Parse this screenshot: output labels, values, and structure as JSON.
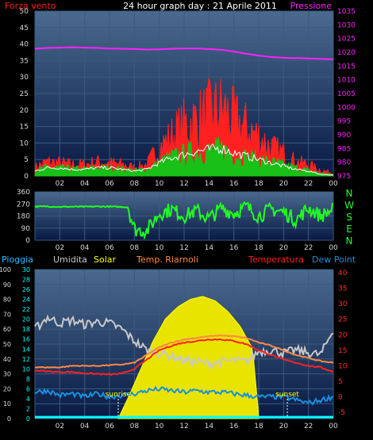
{
  "title": "24 hour graph day : 21 Aprile 2011",
  "colors": {
    "background": "#000000",
    "plot_top": "#4a6a8e",
    "plot_bottom": "#081a44",
    "grid": "#3c5a7c",
    "axis_text": "#d8d8d8",
    "wind": "#ff2020",
    "gust": "#18c018",
    "avgwind": "#ffffff",
    "pressure": "#ff20ff",
    "direction": "#20ff20",
    "compass": "#20ff20",
    "rain_label": "#20c0ff",
    "humidity": "#c8c8c8",
    "solar": "#ffff00",
    "solar_fill": "#e8e400",
    "room_temp": "#ff8844",
    "temperature": "#ff2020",
    "dewpoint": "#1890e0",
    "rain_axis": "#00ffff",
    "temp_axis": "#ff3030",
    "rain_line": "#00ffff",
    "sun_marker": "#ffffff",
    "sun_label": "#ffff00"
  },
  "chart_data": [
    {
      "id": "wind",
      "type": "line",
      "x_ticks": [
        "02",
        "04",
        "06",
        "08",
        "10",
        "12",
        "14",
        "16",
        "18",
        "20",
        "22",
        "00"
      ],
      "x_range_hours": [
        0,
        24
      ],
      "left_axis": {
        "label": "Forza vento",
        "ticks": [
          "0",
          "5",
          "10",
          "15",
          "20",
          "25",
          "30",
          "35",
          "40",
          "45",
          "50"
        ],
        "ylim": [
          0,
          50
        ]
      },
      "right_axis": {
        "label": "Pressione",
        "ticks": [
          "975",
          "980",
          "985",
          "990",
          "995",
          "1000",
          "1005",
          "1010",
          "1015",
          "1020",
          "1025",
          "1030",
          "1035"
        ],
        "ylim": [
          975,
          1035
        ]
      },
      "series": [
        {
          "axis": "right",
          "x_hours": [
            0,
            1,
            2,
            3,
            4,
            5,
            6,
            7,
            8,
            9,
            10,
            11,
            12,
            13,
            14,
            15,
            16,
            17,
            18,
            19,
            20,
            21,
            22,
            23,
            24
          ],
          "values": [
            1021.3,
            1021.6,
            1021.7,
            1021.8,
            1021.7,
            1021.6,
            1021.4,
            1021.3,
            1021.2,
            1021.0,
            1021.1,
            1021.3,
            1021.4,
            1021.4,
            1021.2,
            1020.9,
            1020.3,
            1019.5,
            1018.8,
            1018.3,
            1018.0,
            1017.9,
            1017.8,
            1017.6,
            1017.5
          ]
        },
        {
          "x_hours": [
            0,
            1,
            2,
            3,
            4,
            5,
            6,
            7,
            8,
            9,
            10,
            11,
            12,
            13,
            14,
            15,
            16,
            17,
            18,
            19,
            20,
            21,
            22,
            23,
            24
          ],
          "values": [
            3,
            5,
            4.5,
            4,
            4,
            5,
            4.5,
            4,
            3,
            4,
            10,
            14,
            18,
            20,
            22,
            24,
            20,
            17,
            14,
            10,
            8,
            5,
            4,
            2,
            1
          ]
        },
        {
          "x_hours": [
            0,
            1,
            2,
            3,
            4,
            5,
            6,
            7,
            8,
            9,
            10,
            11,
            12,
            13,
            14,
            15,
            16,
            17,
            18,
            19,
            20,
            21,
            22,
            23,
            24
          ],
          "values": [
            2,
            3,
            3,
            2.5,
            2.5,
            3,
            3,
            2.5,
            2,
            2.5,
            5,
            7,
            8,
            9,
            9,
            10,
            8,
            7,
            6,
            5,
            4,
            3,
            2,
            1,
            0.5
          ]
        },
        {
          "x_hours": [
            0,
            1,
            2,
            3,
            4,
            5,
            6,
            7,
            8,
            9,
            10,
            11,
            12,
            13,
            14,
            15,
            16,
            17,
            18,
            19,
            20,
            21,
            22,
            23,
            24
          ],
          "values": [
            1.5,
            2.5,
            2.5,
            2,
            2,
            2.5,
            2.5,
            2,
            1.5,
            2,
            4,
            5.5,
            6.5,
            7.5,
            8,
            8.5,
            7,
            6,
            5,
            4,
            3,
            2,
            1.5,
            0.5,
            0.3
          ]
        }
      ]
    },
    {
      "id": "direction",
      "type": "line",
      "x_ticks": [
        "02",
        "04",
        "06",
        "08",
        "10",
        "12",
        "14",
        "16",
        "18",
        "20",
        "22",
        "00"
      ],
      "x_range_hours": [
        0,
        24
      ],
      "left_axis": {
        "ticks": [
          "0",
          "90",
          "180",
          "270",
          "360"
        ],
        "ylim": [
          0,
          360
        ]
      },
      "compass": [
        "N",
        "W",
        "S",
        "E",
        "N"
      ],
      "series": [
        {
          "x_hours": [
            0,
            1,
            2,
            3,
            4,
            5,
            6,
            7,
            7.5,
            8,
            9,
            10,
            11,
            12,
            13,
            14,
            15,
            16,
            17,
            18,
            19,
            20,
            21,
            22,
            23,
            24
          ],
          "values": [
            250,
            252,
            248,
            250,
            249,
            251,
            250,
            248,
            245,
            80,
            70,
            200,
            230,
            180,
            220,
            160,
            240,
            200,
            250,
            180,
            230,
            210,
            150,
            240,
            180,
            230
          ]
        }
      ]
    },
    {
      "id": "climate",
      "type": "line",
      "x_ticks": [
        "02",
        "04",
        "06",
        "08",
        "10",
        "12",
        "14",
        "16",
        "18",
        "20",
        "22",
        "00"
      ],
      "x_range_hours": [
        0,
        24
      ],
      "legend": [
        "Pioggia",
        "Umidita",
        "Solar",
        "Temp. Riarnoli",
        "Temperatura",
        "Dew Point"
      ],
      "humidity_axis": {
        "ticks": [
          "0",
          "10",
          "20",
          "30",
          "40",
          "50",
          "60",
          "70",
          "80",
          "90",
          "100"
        ],
        "ylim": [
          0,
          100
        ]
      },
      "rain_axis": {
        "ticks": [
          "0",
          "2",
          "4",
          "6",
          "8",
          "10",
          "12",
          "14",
          "16",
          "18",
          "20",
          "22",
          "24",
          "26",
          "28",
          "30"
        ],
        "ylim": [
          0,
          30
        ]
      },
      "temp_axis": {
        "ticks": [
          "-5",
          "0",
          "5",
          "10",
          "15",
          "20",
          "25",
          "30",
          "35",
          "40"
        ],
        "ylim": [
          -7,
          41
        ]
      },
      "sunrise": "sunrise",
      "sunset": "sunset",
      "sunrise_hour": 6.7,
      "sunset_hour": 20.3,
      "series": [
        {
          "axis": "humidity",
          "x_hours": [
            0,
            1,
            2,
            3,
            4,
            5,
            6,
            7,
            8,
            9,
            10,
            11,
            12,
            13,
            14,
            15,
            16,
            17,
            18,
            19,
            20,
            21,
            22,
            23,
            24
          ],
          "values": [
            60,
            68,
            64,
            66,
            63,
            65,
            64,
            60,
            52,
            46,
            44,
            42,
            39,
            38,
            37,
            38,
            39,
            38,
            45,
            46,
            44,
            46,
            44,
            43,
            60
          ]
        },
        {
          "axis": "humidity",
          "x_hours": [
            6.7,
            7.5,
            8.5,
            9.5,
            10.5,
            11.5,
            12.5,
            13.5,
            14.5,
            15.5,
            16.5,
            17.5,
            18.0
          ],
          "values": [
            0,
            14,
            33,
            52,
            67,
            75,
            80,
            82,
            79,
            72,
            62,
            47,
            2
          ]
        },
        {
          "axis": "temp",
          "x_hours": [
            0,
            1,
            2,
            3,
            4,
            5,
            6,
            7,
            8,
            9,
            10,
            11,
            12,
            13,
            14,
            15,
            16,
            17,
            18,
            19,
            20,
            21,
            22,
            23,
            24
          ],
          "values": [
            9.5,
            9.5,
            9.5,
            10,
            10,
            10,
            10.2,
            10.4,
            11,
            13.5,
            16,
            17.5,
            18.5,
            19,
            19.5,
            19.8,
            19.5,
            19,
            17.5,
            16.5,
            15,
            13.5,
            12.5,
            11.5,
            11
          ]
        },
        {
          "axis": "temp",
          "x_hours": [
            0,
            1,
            2,
            3,
            4,
            5,
            6,
            7,
            8,
            9,
            10,
            11,
            12,
            13,
            14,
            15,
            16,
            17,
            18,
            19,
            20,
            21,
            22,
            23,
            24
          ],
          "values": [
            8.5,
            8.2,
            8,
            8,
            7.6,
            7.4,
            7.2,
            7.5,
            9,
            12,
            15,
            16.5,
            17.5,
            18,
            18.5,
            18.5,
            18,
            17,
            15,
            13.5,
            12,
            11,
            10,
            9.5,
            8
          ]
        },
        {
          "axis": "temp",
          "x_hours": [
            0,
            1,
            2,
            3,
            4,
            5,
            6,
            7,
            8,
            9,
            10,
            11,
            12,
            13,
            14,
            15,
            16,
            17,
            18,
            19,
            20,
            21,
            22,
            23,
            24
          ],
          "values": [
            1.5,
            2,
            0.5,
            1,
            0,
            1,
            0,
            0.5,
            1,
            2,
            2.5,
            2,
            1.5,
            2,
            1.5,
            1.5,
            1,
            0.5,
            0,
            0,
            0,
            -1,
            -2,
            -1,
            0
          ]
        },
        {
          "axis": "rain",
          "x_hours": [
            0,
            24
          ],
          "values": [
            0.3,
            0.3
          ]
        }
      ]
    }
  ]
}
